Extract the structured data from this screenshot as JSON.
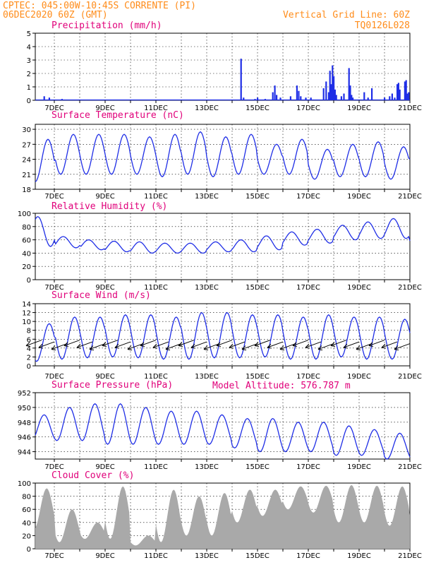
{
  "header": {
    "left1": "CPTEC:   045:00W-10:45S   CORRENTE (PI)",
    "left2": "06DEC2020 60Z (GMT)",
    "right1": "Vertical Grid Line: 60Z",
    "right2": "TQ0126L028",
    "altitude": "Model Altitude: 576.787 m"
  },
  "colors": {
    "header": "#ff8c1a",
    "title": "#e0007a",
    "line": "#1f2ee6",
    "cloud": "#a9a9a9",
    "wind": "#000000"
  },
  "x_tick_labels": [
    "7DEC",
    "9DEC",
    "11DEC",
    "13DEC",
    "15DEC",
    "17DEC",
    "19DEC",
    "21DEC"
  ],
  "chart_data": [
    {
      "type": "bar",
      "title": "Precipitation (mm/h)",
      "ylim": [
        0,
        5
      ],
      "yticks": [
        "0",
        "1",
        "2",
        "3",
        "4",
        "5"
      ],
      "x_days": [
        6.6,
        6.8,
        7.3,
        8.2,
        12.8,
        14.35,
        14.45,
        14.9,
        15.0,
        15.3,
        15.6,
        15.68,
        15.75,
        15.9,
        16.3,
        16.55,
        16.62,
        16.7,
        16.9,
        17.1,
        17.6,
        17.7,
        17.8,
        17.85,
        17.9,
        17.95,
        18.0,
        18.05,
        18.1,
        18.3,
        18.4,
        18.6,
        18.65,
        18.7,
        18.75,
        19.2,
        19.35,
        19.5,
        20.0,
        20.2,
        20.3,
        20.4,
        20.5,
        20.55,
        20.6,
        20.8,
        20.85,
        20.9,
        20.95
      ],
      "values": [
        0.3,
        0.2,
        0.1,
        0.05,
        0.05,
        3.1,
        0.2,
        0.1,
        0.2,
        0.1,
        0.6,
        1.1,
        0.4,
        0.2,
        0.3,
        1.1,
        0.7,
        0.3,
        0.2,
        0.2,
        0.9,
        1.4,
        0.6,
        2.2,
        1.2,
        2.6,
        1.8,
        0.8,
        0.4,
        0.3,
        0.5,
        2.4,
        1.1,
        0.4,
        0.2,
        0.6,
        0.2,
        0.9,
        0.2,
        0.3,
        0.5,
        0.2,
        1.2,
        1.3,
        0.8,
        1.4,
        1.5,
        0.5,
        0.6
      ]
    },
    {
      "type": "line",
      "title": "Surface Temperature (nC)",
      "ylim": [
        18,
        31
      ],
      "yticks": [
        "18",
        "21",
        "24",
        "27",
        "30"
      ],
      "daily_max": [
        28,
        29,
        29,
        29,
        28.5,
        29,
        29.5,
        28.5,
        29,
        27,
        28,
        26,
        27,
        27.5,
        26.5,
        28,
        27
      ],
      "daily_min": [
        19.5,
        21,
        21,
        21,
        21,
        20.5,
        21,
        20.5,
        21,
        21,
        21,
        20,
        20.5,
        20.5,
        20,
        20,
        19.5
      ]
    },
    {
      "type": "line",
      "title": "Relative Humidity (%)",
      "ylim": [
        0,
        100
      ],
      "yticks": [
        "0",
        "20",
        "40",
        "60",
        "80",
        "100"
      ],
      "daily_max": [
        95,
        65,
        60,
        58,
        57,
        55,
        55,
        57,
        60,
        66,
        72,
        76,
        82,
        87,
        92,
        84,
        85
      ],
      "daily_min": [
        50,
        48,
        45,
        42,
        40,
        40,
        40,
        42,
        42,
        45,
        52,
        55,
        60,
        62,
        62,
        52,
        52
      ]
    },
    {
      "type": "line",
      "title": "Surface Wind (m/s)",
      "ylim": [
        0,
        14
      ],
      "yticks": [
        "0",
        "2",
        "4",
        "6",
        "8",
        "10",
        "12",
        "14"
      ],
      "daily_max": [
        9.5,
        11,
        11,
        11.5,
        11.5,
        11,
        12,
        12,
        11.5,
        11.5,
        11,
        11.5,
        11,
        11,
        10.5,
        10,
        9.5
      ],
      "daily_min": [
        1,
        1.5,
        1.8,
        2,
        1.8,
        1.5,
        1.5,
        1.8,
        1.8,
        2,
        1.5,
        1.5,
        2,
        1.5,
        1.5,
        2.5,
        1.5
      ]
    },
    {
      "type": "line",
      "title": "Surface Pressure (hPa)",
      "ylim": [
        943,
        952
      ],
      "yticks": [
        "944",
        "946",
        "948",
        "950",
        "952"
      ],
      "daily_max": [
        949,
        950,
        950.5,
        950.5,
        950,
        949.5,
        949.5,
        949,
        948.5,
        948.5,
        948,
        948,
        947.5,
        947,
        946.5,
        946,
        945.5
      ],
      "daily_min": [
        945.5,
        945.5,
        945.5,
        945,
        945,
        945,
        945,
        945,
        944.5,
        944,
        944,
        944,
        943.5,
        943.5,
        943,
        943,
        943
      ]
    },
    {
      "type": "area",
      "title": "Cloud Cover (%)",
      "ylim": [
        0,
        100
      ],
      "yticks": [
        "0",
        "20",
        "40",
        "60",
        "80",
        "100"
      ],
      "daily_max": [
        92,
        60,
        40,
        95,
        20,
        90,
        80,
        85,
        90,
        90,
        95,
        96,
        97,
        96,
        95,
        92,
        95
      ],
      "daily_min": [
        30,
        10,
        15,
        15,
        5,
        10,
        20,
        20,
        40,
        50,
        60,
        55,
        40,
        40,
        35,
        30,
        30
      ]
    }
  ]
}
